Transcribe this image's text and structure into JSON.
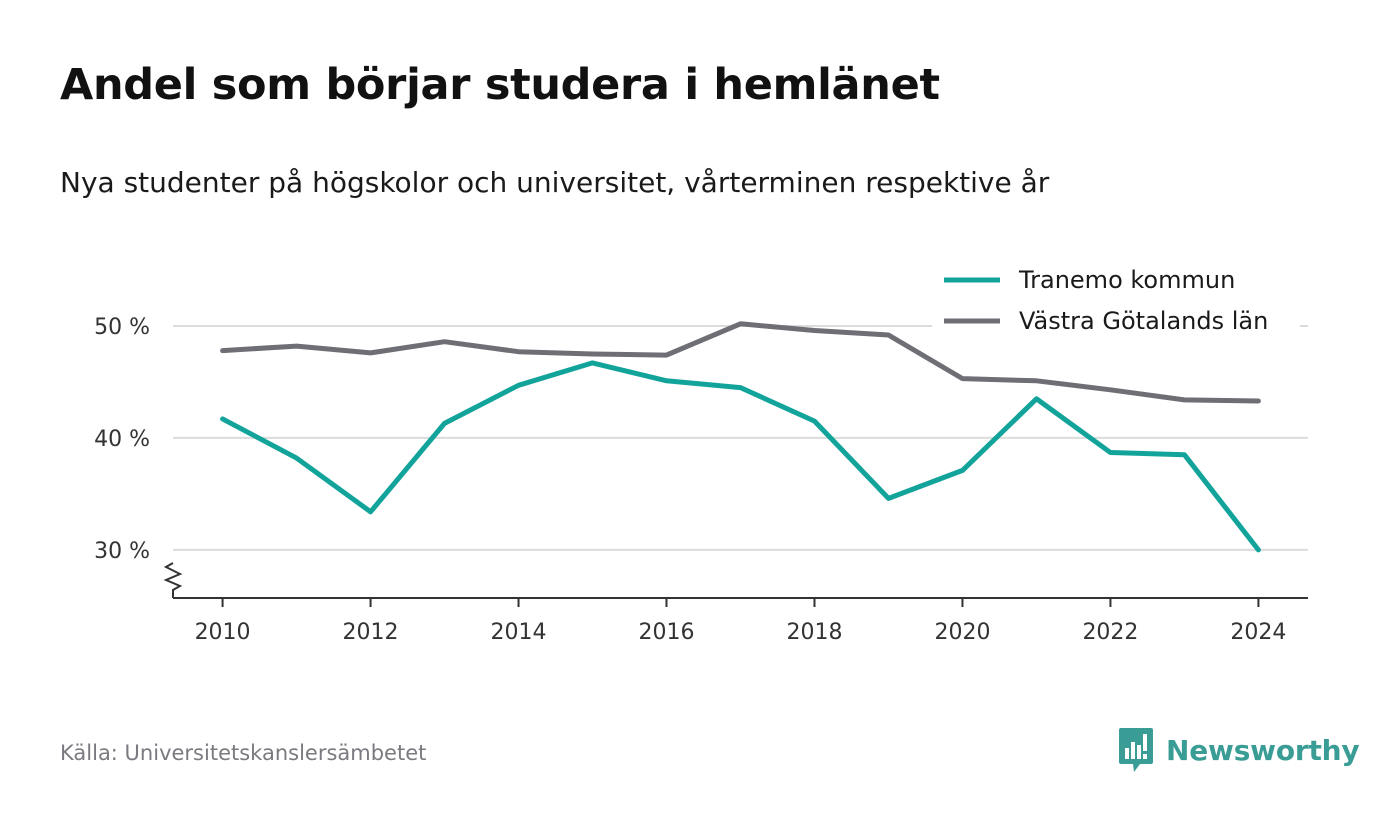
{
  "title": "Andel som börjar studera i hemlänet",
  "subtitle": "Nya studenter på högskolor och universitet, vårterminen respektive år",
  "source": "Källa: Universitetskanslersämbetet",
  "brand": {
    "name": "Newsworthy",
    "icon": "newsworthy-logo-icon",
    "color": "#3a9d95"
  },
  "chart_data": {
    "type": "line",
    "title": "Andel som börjar studera i hemlänet",
    "subtitle": "Nya studenter på högskolor och universitet, vårterminen respektive år",
    "xlabel": "",
    "ylabel": "",
    "x": [
      2010,
      2011,
      2012,
      2013,
      2014,
      2015,
      2016,
      2017,
      2018,
      2019,
      2020,
      2021,
      2022,
      2023,
      2024
    ],
    "x_ticks": [
      2010,
      2012,
      2014,
      2016,
      2018,
      2020,
      2022,
      2024
    ],
    "y_ticks": [
      {
        "value": 30,
        "label": "30 %"
      },
      {
        "value": 40,
        "label": "40 %"
      },
      {
        "value": 50,
        "label": "50 %"
      }
    ],
    "xlim": [
      2009.33,
      2024.67
    ],
    "ylim": [
      25.7,
      50
    ],
    "y_axis_broken": true,
    "grid": "horizontal",
    "legend_position": "top-right",
    "series": [
      {
        "name": "Tranemo kommun",
        "color": "#12a39a",
        "values": [
          41.7,
          38.2,
          33.4,
          41.3,
          44.7,
          46.7,
          45.1,
          44.5,
          41.5,
          34.6,
          37.1,
          43.5,
          38.7,
          38.5,
          30.0
        ]
      },
      {
        "name": "Västra Götalands län",
        "color": "#6e6e75",
        "values": [
          47.8,
          48.2,
          47.6,
          48.6,
          47.7,
          47.5,
          47.4,
          50.2,
          49.6,
          49.2,
          45.3,
          45.1,
          44.3,
          43.4,
          43.3
        ]
      }
    ]
  }
}
